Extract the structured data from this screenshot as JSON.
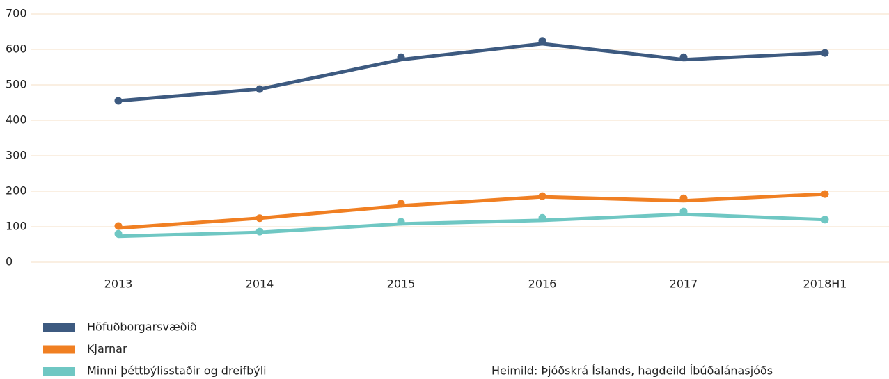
{
  "chart_data": {
    "type": "line",
    "categories": [
      "2013",
      "2014",
      "2015",
      "2016",
      "2017",
      "2018H1"
    ],
    "series": [
      {
        "name": "Höfuðborgarsvæðið",
        "color": "#3d5a80",
        "values": [
          455,
          488,
          571,
          616,
          571,
          590
        ],
        "points": [
          455,
          488,
          578,
          624,
          578,
          590
        ]
      },
      {
        "name": "Kjarnar",
        "color": "#f07f22",
        "values": [
          96,
          124,
          159,
          184,
          173,
          192
        ],
        "points": [
          102,
          124,
          165,
          186,
          180,
          192
        ]
      },
      {
        "name": "Minni þéttbýlisstaðir og dreifbýli",
        "color": "#6fc7c3",
        "values": [
          73,
          84,
          108,
          118,
          135,
          120
        ],
        "points": [
          80,
          86,
          114,
          125,
          143,
          120
        ]
      }
    ],
    "ylim": [
      0,
      700
    ],
    "yticks": [
      0,
      100,
      200,
      300,
      400,
      500,
      600,
      700
    ],
    "grid": true,
    "source": "Heimild: Þjóðskrá Íslands, hagdeild Íbúðalánasjóðs"
  }
}
